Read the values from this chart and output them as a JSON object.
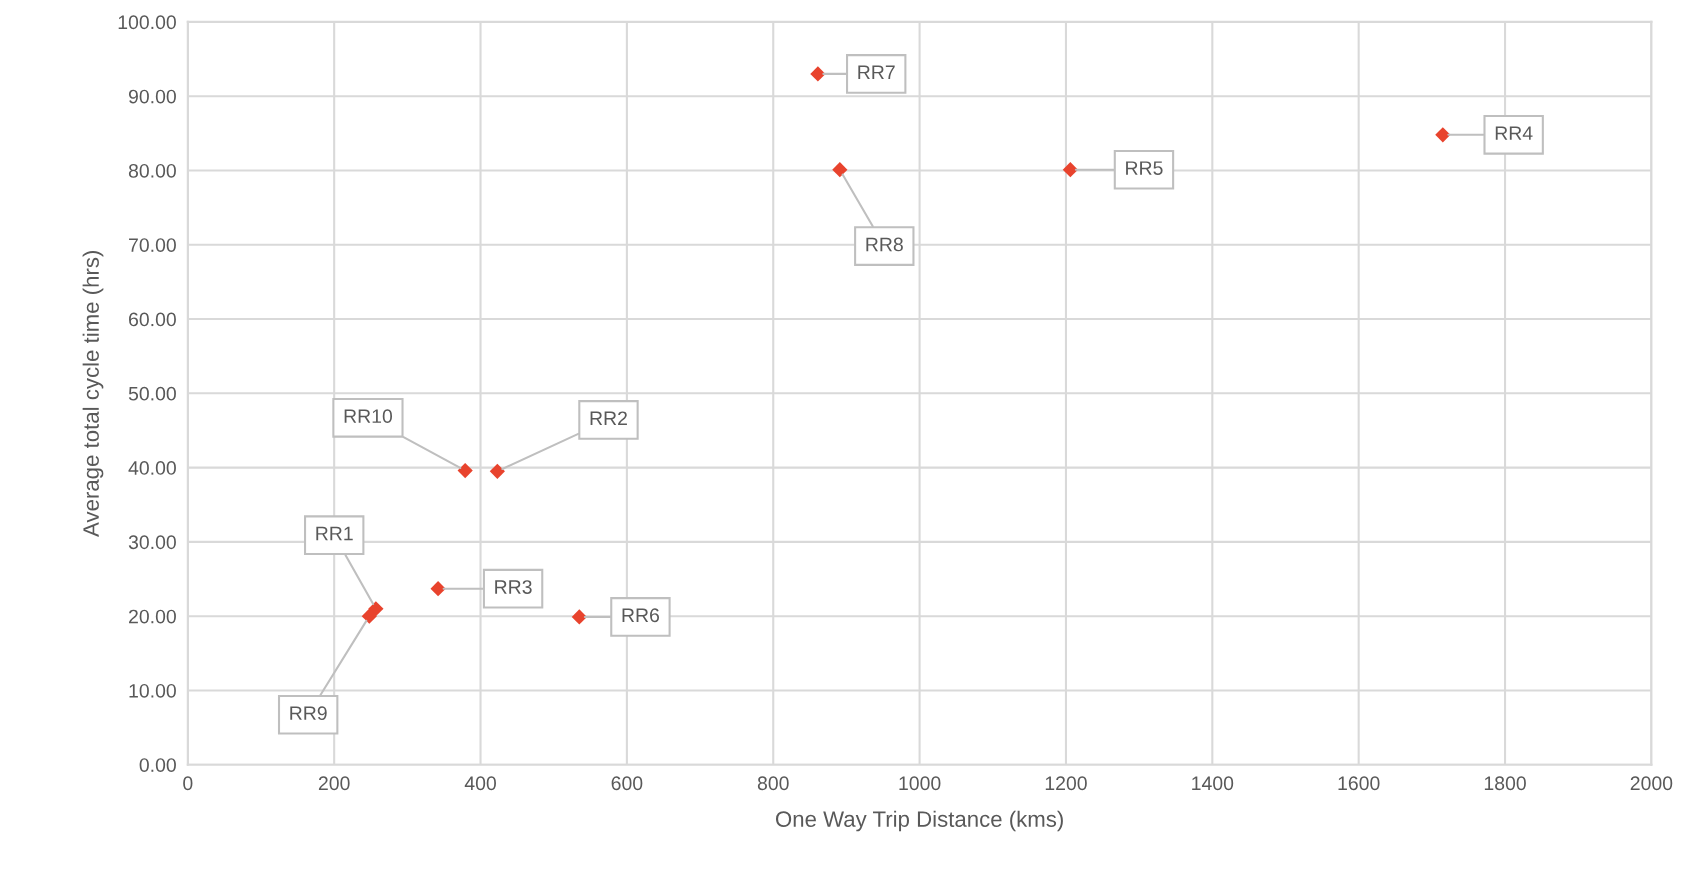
{
  "chart_data": {
    "type": "scatter",
    "xlabel": "One Way Trip Distance (kms)",
    "ylabel": "Average total cycle time (hrs)",
    "x": [
      257,
      423,
      342,
      1715,
      1206,
      535,
      861,
      891,
      248,
      379
    ],
    "series": [
      {
        "color": "#e8432d",
        "values": [
          21.0,
          39.5,
          23.7,
          84.8,
          80.1,
          19.9,
          93.0,
          80.1,
          20.0,
          39.6
        ]
      }
    ],
    "annotations": [
      {
        "text": "RR1",
        "x": 257,
        "y": 21.0
      },
      {
        "text": "RR2",
        "x": 423,
        "y": 39.5
      },
      {
        "text": "RR3",
        "x": 342,
        "y": 23.7
      },
      {
        "text": "RR4",
        "x": 1715,
        "y": 84.8
      },
      {
        "text": "RR5",
        "x": 1206,
        "y": 80.1
      },
      {
        "text": "RR6",
        "x": 535,
        "y": 19.9
      },
      {
        "text": "RR7",
        "x": 861,
        "y": 93.0
      },
      {
        "text": "RR8",
        "x": 891,
        "y": 80.1
      },
      {
        "text": "RR9",
        "x": 248,
        "y": 20.0
      },
      {
        "text": "RR10",
        "x": 379,
        "y": 39.6
      }
    ],
    "xlim": [
      0,
      2000
    ],
    "xticks": [
      0,
      200,
      400,
      600,
      800,
      1000,
      1200,
      1400,
      1600,
      1800,
      2000
    ],
    "ylim": [
      0,
      100
    ],
    "yticks": [
      {
        "value": 0,
        "label": "0.00"
      },
      {
        "value": 10,
        "label": "10.00"
      },
      {
        "value": 20,
        "label": "20.00"
      },
      {
        "value": 30,
        "label": "30.00"
      },
      {
        "value": 40,
        "label": "40.00"
      },
      {
        "value": 50,
        "label": "50.00"
      },
      {
        "value": 60,
        "label": "60.00"
      },
      {
        "value": 70,
        "label": "70.00"
      },
      {
        "value": 80,
        "label": "80.00"
      },
      {
        "value": 90,
        "label": "90.00"
      },
      {
        "value": 100,
        "label": "100.00"
      }
    ],
    "grid": true,
    "marker": "diamond",
    "legend": false
  }
}
